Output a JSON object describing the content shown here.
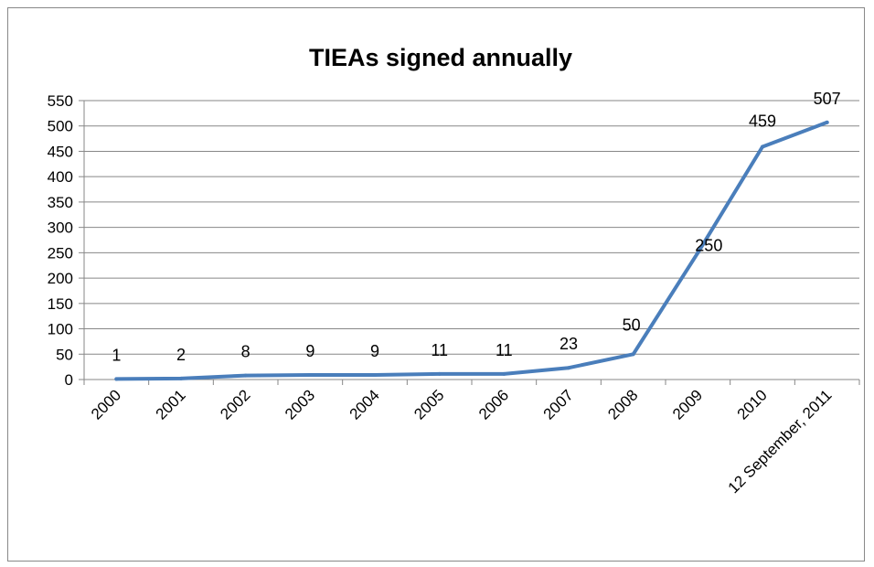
{
  "chart_data": {
    "type": "line",
    "title": "TIEAs signed annually",
    "xlabel": "",
    "ylabel": "",
    "categories": [
      "2000",
      "2001",
      "2002",
      "2003",
      "2004",
      "2005",
      "2006",
      "2007",
      "2008",
      "2009",
      "2010",
      "12 September, 2011"
    ],
    "series": [
      {
        "values": [
          1,
          2,
          8,
          9,
          9,
          11,
          11,
          23,
          50,
          250,
          459,
          507
        ]
      }
    ],
    "ylim": [
      0,
      550
    ],
    "yticks": [
      0,
      50,
      100,
      150,
      200,
      250,
      300,
      350,
      400,
      450,
      500,
      550
    ],
    "grid": true,
    "legend": "none",
    "data_labels": [
      "1",
      "2",
      "8",
      "9",
      "9",
      "11",
      "11",
      "23",
      "50",
      "250",
      "459",
      "507"
    ],
    "colors": {
      "line": "#4a7ebb",
      "grid": "#878787",
      "axis": "#878787"
    }
  }
}
